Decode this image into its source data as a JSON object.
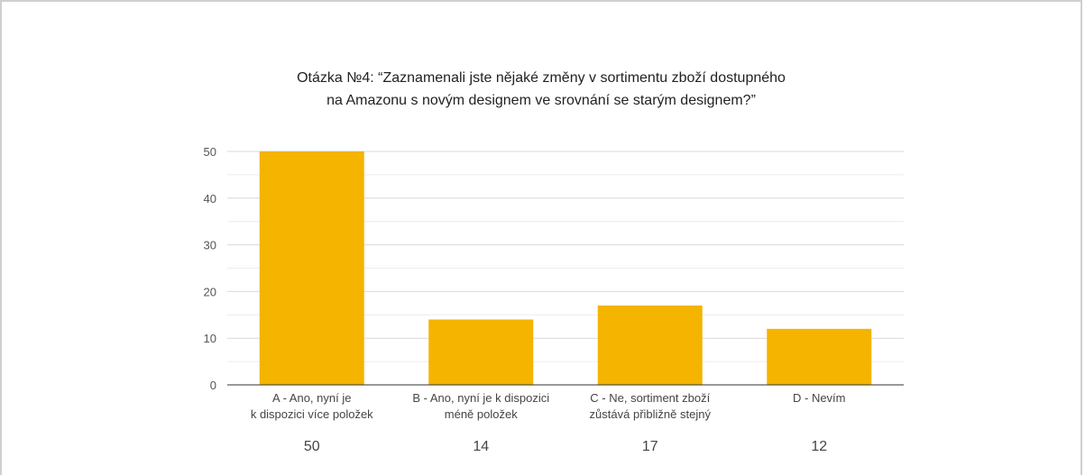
{
  "chart_data": {
    "type": "bar",
    "title_lines": [
      "Otázka №4: “Zaznamenali jste nějaké změny v sortimentu zboží dostupného",
      "na Amazonu s novým designem ve srovnání se starým designem?”"
    ],
    "categories": [
      [
        "A - Ano, nyní je",
        "k dispozici více položek"
      ],
      [
        "B - Ano, nyní je k dispozici",
        "méně položek"
      ],
      [
        "C - Ne, sortiment zboží",
        "zůstává přibližně stejný"
      ],
      [
        "D - Nevím"
      ]
    ],
    "values": [
      50,
      14,
      17,
      12
    ],
    "value_labels": [
      "50",
      "14",
      "17",
      "12"
    ],
    "yticks": [
      "0",
      "10",
      "20",
      "30",
      "40",
      "50"
    ],
    "ylim": [
      0,
      50
    ],
    "bar_color": "#f4b400",
    "grid": true
  }
}
